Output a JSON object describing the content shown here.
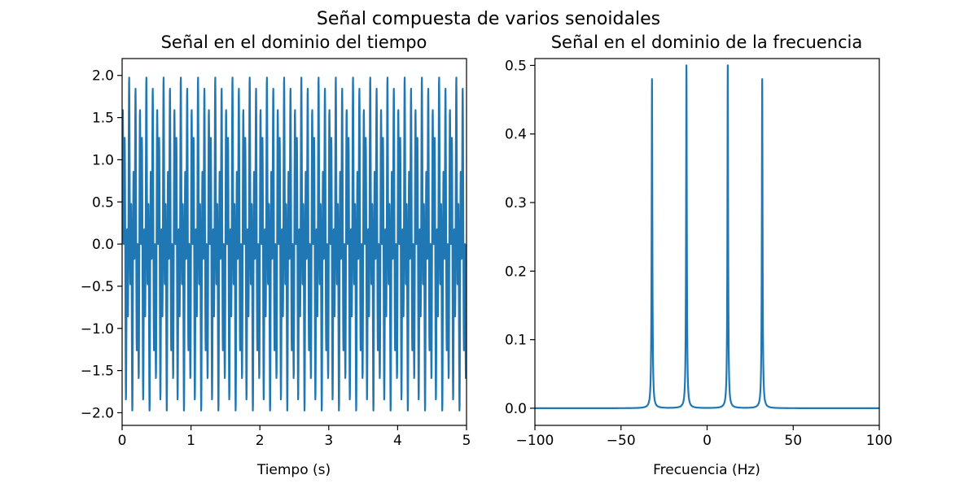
{
  "figure": {
    "title": "Señal compuesta de varios senoidales"
  },
  "colors": {
    "series": "#1f77b4",
    "axes": "#000000",
    "background": "#ffffff"
  },
  "chart_data": [
    {
      "id": "time",
      "type": "line",
      "title": "Señal en el dominio del tiempo",
      "xlabel": "Tiempo (s)",
      "ylabel": "",
      "xlim": [
        0,
        5
      ],
      "ylim": [
        -2.15,
        2.2
      ],
      "xticks": [
        0,
        1,
        2,
        3,
        4,
        5
      ],
      "xtick_labels": [
        "0",
        "1",
        "2",
        "3",
        "4",
        "5"
      ],
      "yticks": [
        -2.0,
        -1.5,
        -1.0,
        -0.5,
        0.0,
        0.5,
        1.0,
        1.5,
        2.0
      ],
      "ytick_labels": [
        "−2.0",
        "−1.5",
        "−1.0",
        "−0.5",
        "0.0",
        "0.5",
        "1.0",
        "1.5",
        "2.0"
      ],
      "grid": false,
      "series": [
        {
          "components": [
            {
              "amplitude": 1.0,
              "frequency_hz": 12
            },
            {
              "amplitude": 1.0,
              "frequency_hz": 32
            }
          ],
          "x_range": [
            0,
            5
          ],
          "samples": 2000
        }
      ]
    },
    {
      "id": "frequency",
      "type": "line",
      "title": "Señal en el dominio de la frecuencia",
      "xlabel": "Frecuencia (Hz)",
      "ylabel": "",
      "xlim": [
        -100,
        100
      ],
      "ylim": [
        -0.025,
        0.51
      ],
      "xticks": [
        -100,
        -50,
        0,
        50,
        100
      ],
      "xtick_labels": [
        "−100",
        "−50",
        "0",
        "50",
        "100"
      ],
      "yticks": [
        0.0,
        0.1,
        0.2,
        0.3,
        0.4,
        0.5
      ],
      "ytick_labels": [
        "0.0",
        "0.1",
        "0.2",
        "0.3",
        "0.4",
        "0.5"
      ],
      "grid": false,
      "series": [
        {
          "peaks": [
            {
              "frequency_hz": -32,
              "magnitude": 0.48
            },
            {
              "frequency_hz": -12,
              "magnitude": 0.5
            },
            {
              "frequency_hz": 12,
              "magnitude": 0.5
            },
            {
              "frequency_hz": 32,
              "magnitude": 0.48
            }
          ],
          "baseline": 0.0,
          "peak_width_hz": 0.25
        }
      ]
    }
  ]
}
